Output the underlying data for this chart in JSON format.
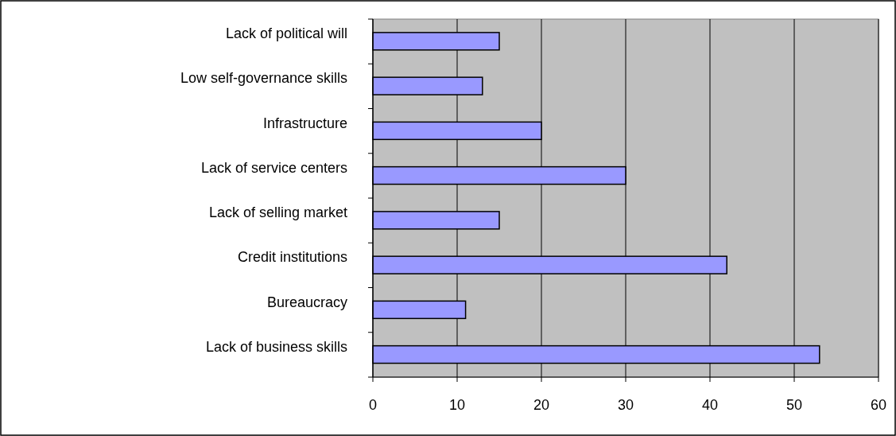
{
  "chart_data": {
    "type": "bar",
    "orientation": "horizontal",
    "categories": [
      "Lack of political will",
      "Low self-governance skills",
      "Infrastructure",
      "Lack of service centers",
      "Lack of selling market",
      "Credit institutions",
      "Bureaucracy",
      "Lack of business skills"
    ],
    "values": [
      15,
      13,
      20,
      30,
      15,
      42,
      11,
      53
    ],
    "color": "#9999ff",
    "xlim": [
      0,
      60
    ],
    "xticks": [
      0,
      10,
      20,
      30,
      40,
      50,
      60
    ],
    "grid": "x"
  }
}
